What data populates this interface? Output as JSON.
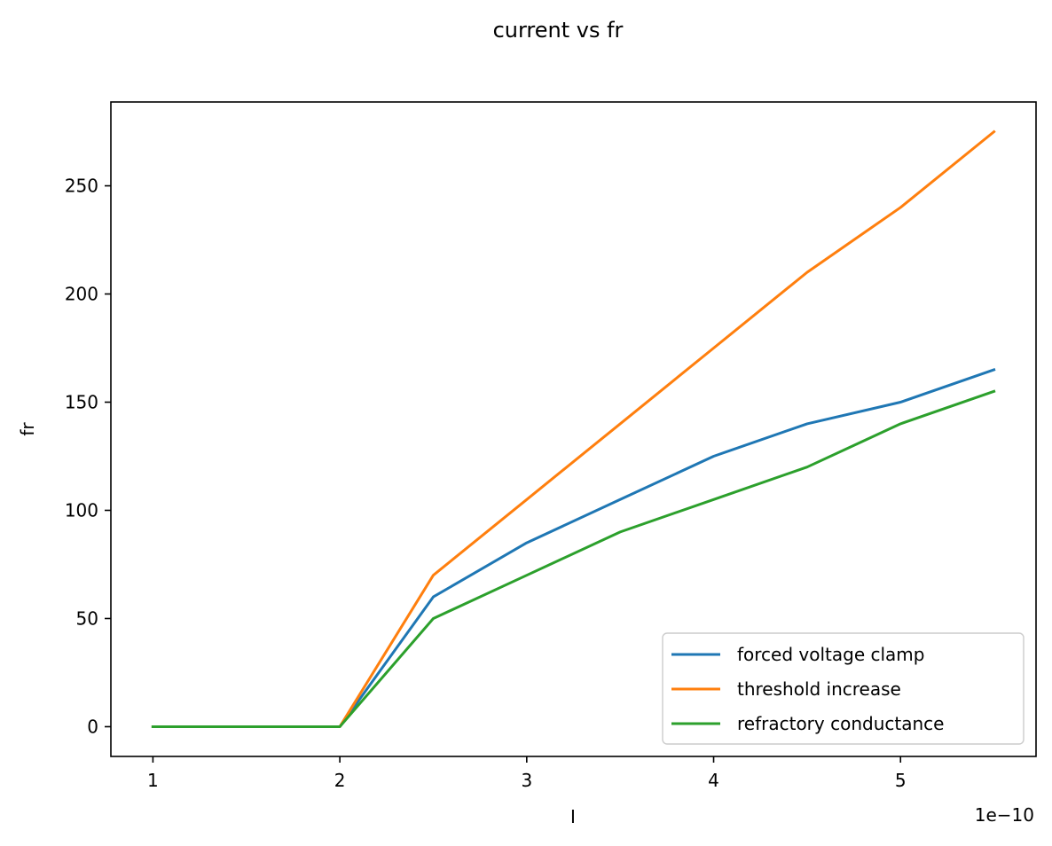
{
  "chart_data": {
    "type": "line",
    "title": "current vs fr",
    "xlabel": "I",
    "ylabel": "fr",
    "x_offset_text": "1e−10",
    "x_scale_exponent": -10,
    "x": [
      1.0,
      2.0,
      2.5,
      3.0,
      3.5,
      4.0,
      4.5,
      5.0,
      5.5
    ],
    "xlim": [
      0.775,
      5.725
    ],
    "ylim": [
      -13.75,
      288.75
    ],
    "xticks": [
      1,
      2,
      3,
      4,
      5
    ],
    "yticks": [
      0,
      50,
      100,
      150,
      200,
      250
    ],
    "grid": false,
    "legend_position": "lower-right",
    "series": [
      {
        "name": "forced voltage clamp",
        "color": "#1f77b4",
        "values": [
          0,
          0,
          60,
          85,
          105,
          125,
          140,
          150,
          165
        ]
      },
      {
        "name": "threshold increase",
        "color": "#ff7f0e",
        "values": [
          0,
          0,
          70,
          105,
          140,
          175,
          210,
          240,
          275
        ]
      },
      {
        "name": "refractory conductance",
        "color": "#2ca02c",
        "values": [
          0,
          0,
          50,
          70,
          90,
          105,
          120,
          140,
          155
        ]
      }
    ]
  }
}
